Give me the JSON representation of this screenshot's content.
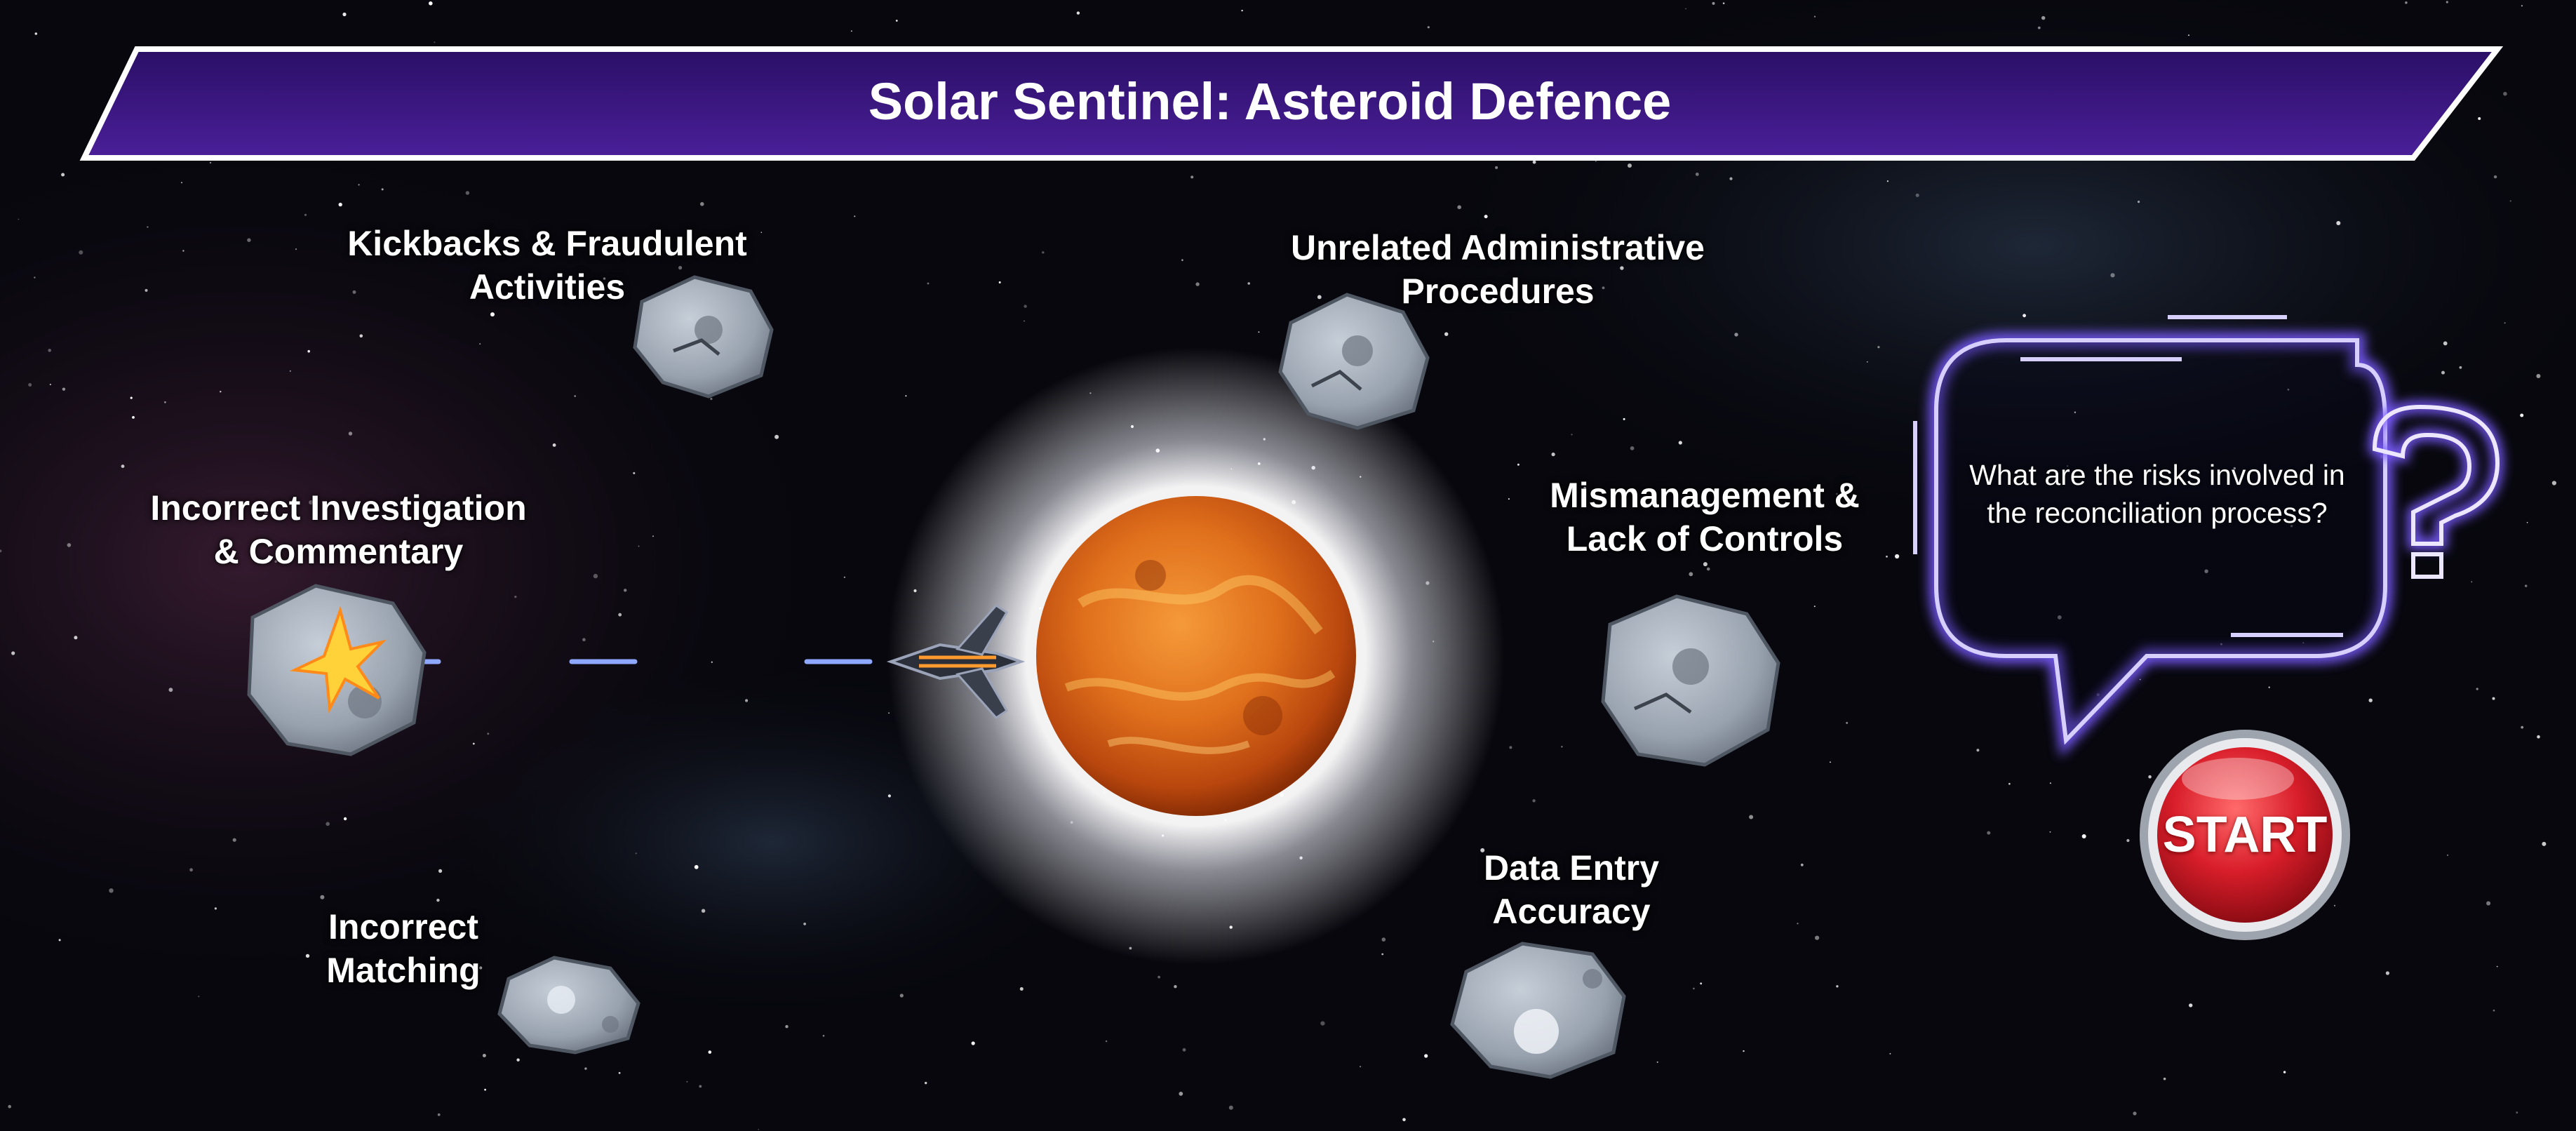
{
  "game": {
    "title": "Solar Sentinel: Asteroid Defence",
    "question": "What are the risks involved in the reconciliation process?",
    "start_label": "START"
  },
  "asteroids": [
    {
      "line1": "Kickbacks & Fraudulent",
      "line2": "Activities"
    },
    {
      "line1": "Unrelated Administrative",
      "line2": "Procedures"
    },
    {
      "line1": "Incorrect Investigation",
      "line2": "& Commentary"
    },
    {
      "line1": "Mismanagement &",
      "line2": "Lack of Controls"
    },
    {
      "line1": "Incorrect",
      "line2": "Matching"
    },
    {
      "line1": "Data Entry",
      "line2": "Accuracy"
    }
  ],
  "colors": {
    "banner": "#3a1780",
    "banner_border": "#ffffff",
    "laser": "#8fa8ff",
    "neon": "#7a5cff",
    "start_button": "#d81e2a",
    "sun": "#e0701c"
  },
  "icons": {
    "player": "spaceship-icon",
    "hint": "question-mark-icon",
    "hit": "explosion-icon"
  }
}
